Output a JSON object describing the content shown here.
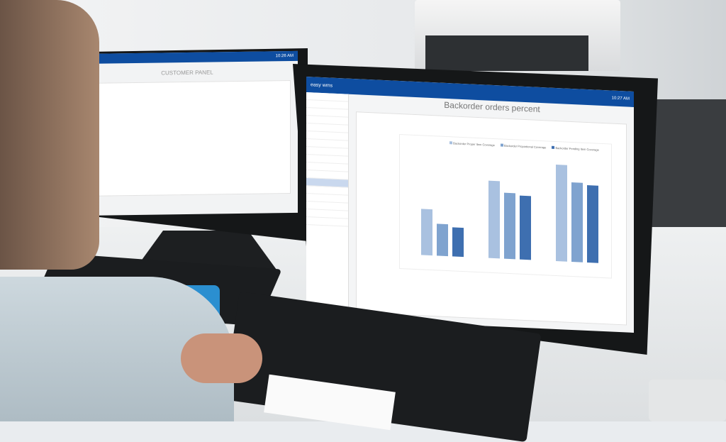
{
  "left_screen": {
    "title": "CUSTOMER PANEL",
    "time": "10:26 AM"
  },
  "right_screen": {
    "brand": "easy wms",
    "time": "10:27 AM",
    "title": "Backorder orders percent",
    "sidebar_items": [
      "",
      "",
      "",
      "",
      "",
      "",
      "",
      "",
      "",
      "",
      "",
      "",
      "",
      "",
      "",
      "",
      ""
    ],
    "legend": [
      "Backorder Proper Item Coverage",
      "Backorder Proportional Coverage",
      "Backorder Pending Item Coverage"
    ],
    "colors": [
      "#a9c1e0",
      "#7fa3cf",
      "#3e6fb0"
    ]
  },
  "chart_data": {
    "type": "bar",
    "categories": [
      "",
      "",
      ""
    ],
    "series": [
      {
        "values": [
          48,
          80,
          100
        ]
      },
      {
        "values": [
          33,
          68,
          82
        ]
      },
      {
        "values": [
          30,
          66,
          80
        ]
      }
    ],
    "ylim": [
      0,
      110
    ],
    "grid": true,
    "legend": "top"
  }
}
